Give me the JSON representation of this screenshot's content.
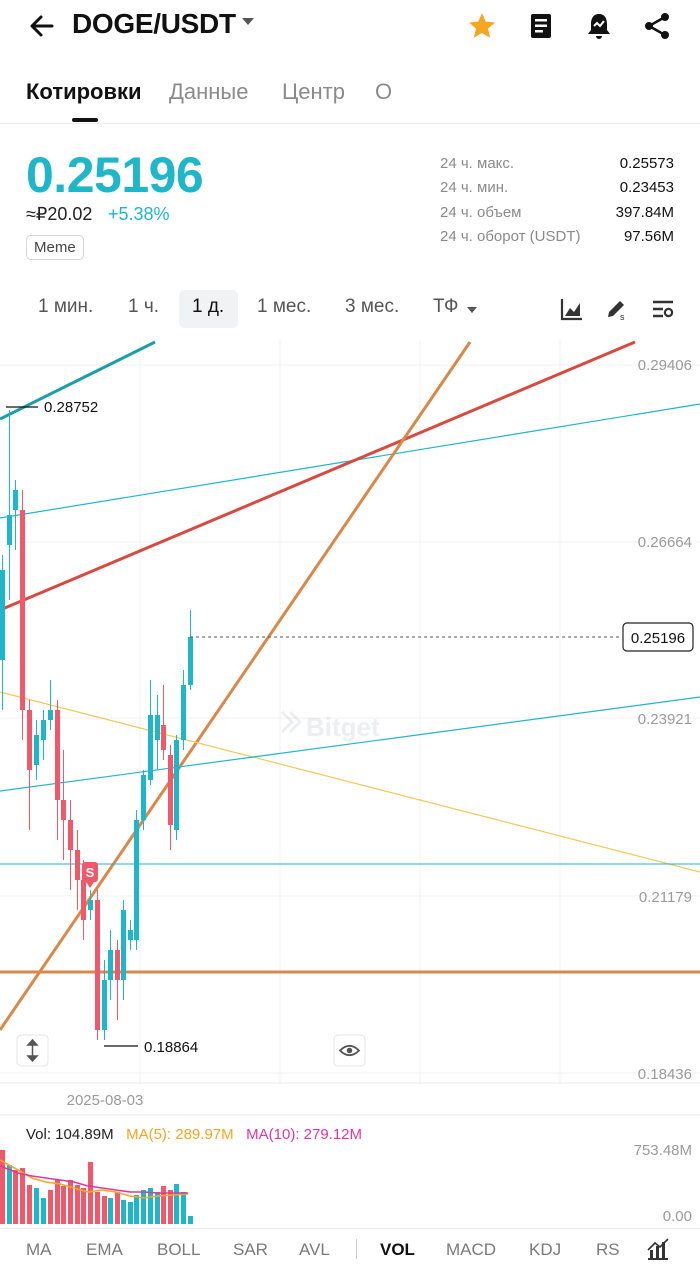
{
  "header": {
    "pair": "DOGE/USDT",
    "icons": [
      "back-arrow-icon",
      "caret-down-icon",
      "star-icon",
      "document-icon",
      "alert-bell-icon",
      "share-icon"
    ],
    "star_color": "#f5a623"
  },
  "tabs": [
    "Котировки",
    "Данные",
    "Центр",
    "О"
  ],
  "ticker": {
    "price": "0.25196",
    "fiat": "≈₽20.02",
    "change": "+5.38%",
    "tag": "Meme",
    "price_color": "#1fb6c9",
    "stats": [
      {
        "label": "24 ч. макс.",
        "value": "0.25573"
      },
      {
        "label": "24 ч. мин.",
        "value": "0.23453"
      },
      {
        "label": "24 ч. объем",
        "value": "397.84M"
      },
      {
        "label": "24 ч. оборот (USDT)",
        "value": "97.56M"
      }
    ]
  },
  "timeframes": [
    "1 мин.",
    "1 ч.",
    "1 д.",
    "1 мес.",
    "3 мес.",
    "ТФ"
  ],
  "active_timeframe": "1 д.",
  "chart_tools": [
    "chart-type-icon",
    "draw-tool-icon",
    "indicator-settings-icon"
  ],
  "chart": {
    "y_labels": [
      "0.29406",
      "0.26664",
      "0.23921",
      "0.21179",
      "0.18436"
    ],
    "current_price_label": "0.25196",
    "high_marker": "0.28752",
    "low_marker": "0.18864",
    "date_label": "2025-08-03",
    "signal_badge": "S",
    "watermark": "Bitget",
    "up_color": "#1fb6c9",
    "down_color": "#f0596b"
  },
  "volume": {
    "vol": "Vol: 104.89M",
    "ma5": "MA(5): 289.97M",
    "ma10": "MA(10): 279.12M",
    "axis_top": "753.48M",
    "axis_bottom": "0.00",
    "ma5_color": "#f5a623",
    "ma10_color": "#e0389a"
  },
  "indicators": [
    "MA",
    "EMA",
    "BOLL",
    "SAR",
    "AVL",
    "VOL",
    "MACD",
    "KDJ",
    "RS"
  ],
  "active_indicator": "VOL"
}
